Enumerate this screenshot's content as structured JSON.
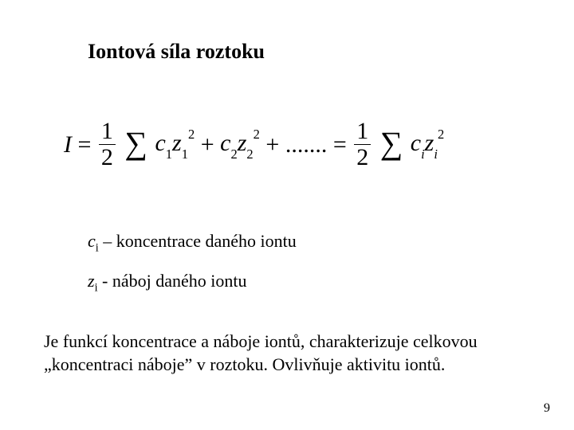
{
  "title": "Iontová síla roztoku",
  "formula": {
    "lhs": "I",
    "frac_num": "1",
    "frac_den": "2",
    "terms_c1": "c",
    "terms_c1_sub": "1",
    "terms_z1": "z",
    "terms_z1_sub": "1",
    "terms_z1_sup": "2",
    "terms_c2": "c",
    "terms_c2_sub": "2",
    "terms_z2": "z",
    "terms_z2_sub": "2",
    "terms_z2_sup": "2",
    "dots": ".......",
    "terms_ci": "c",
    "terms_ci_sub": "i",
    "terms_zi": "z",
    "terms_zi_sub": "i",
    "terms_zi_sup": "2"
  },
  "def_c": {
    "sym": "c",
    "sub": "i",
    "dash": " – ",
    "text": "koncentrace daného iontu"
  },
  "def_z": {
    "sym": "z",
    "sub": "i",
    "dash": " - ",
    "text": "náboj daného iontu"
  },
  "paragraph": "Je funkcí koncentrace a náboje iontů, charakterizuje celkovou „koncentraci náboje” v roztoku. Ovlivňuje aktivitu iontů.",
  "page_number": "9",
  "colors": {
    "background": "#ffffff",
    "text": "#000000"
  },
  "fonts": {
    "family": "Times New Roman",
    "title_size_pt": 26,
    "body_size_pt": 22,
    "formula_size_pt": 30
  }
}
